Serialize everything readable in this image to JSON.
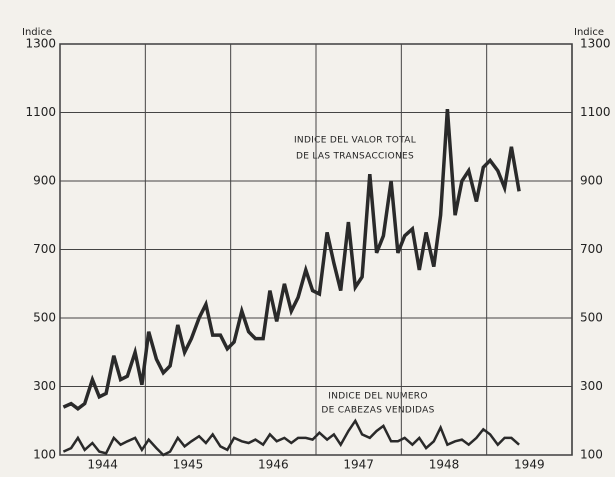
{
  "chart_data": {
    "type": "line",
    "y_label": "Indice",
    "y2_label": "Indice",
    "annotations": [
      "INDICE DEL VALOR TOTAL",
      "DE LAS TRANSACCIONES",
      "INDICE DEL NUMERO",
      "DE CABEZAS VENDIDAS"
    ],
    "x": [
      1944.04,
      1944.13,
      1944.21,
      1944.29,
      1944.38,
      1944.46,
      1944.54,
      1944.63,
      1944.71,
      1944.79,
      1944.88,
      1944.96,
      1945.04,
      1945.13,
      1945.21,
      1945.29,
      1945.38,
      1945.46,
      1945.54,
      1945.63,
      1945.71,
      1945.79,
      1945.88,
      1945.96,
      1946.04,
      1946.13,
      1946.21,
      1946.29,
      1946.38,
      1946.46,
      1946.54,
      1946.63,
      1946.71,
      1946.79,
      1946.88,
      1946.96,
      1947.04,
      1947.13,
      1947.21,
      1947.29,
      1947.38,
      1947.46,
      1947.54,
      1947.63,
      1947.71,
      1947.79,
      1947.88,
      1947.96,
      1948.04,
      1948.13,
      1948.21,
      1948.29,
      1948.38,
      1948.46,
      1948.54,
      1948.63,
      1948.71,
      1948.79,
      1948.88,
      1948.96,
      1949.04,
      1949.13,
      1949.21,
      1949.29,
      1949.38
    ],
    "series": [
      {
        "name": "INDICE DEL VALOR TOTAL DE LAS TRANSACCIONES",
        "color": "#2a2a2a",
        "values": [
          240,
          250,
          235,
          250,
          320,
          270,
          280,
          390,
          320,
          330,
          400,
          305,
          460,
          380,
          340,
          360,
          480,
          400,
          440,
          500,
          540,
          450,
          450,
          410,
          430,
          520,
          460,
          440,
          440,
          580,
          490,
          600,
          520,
          560,
          640,
          580,
          570,
          750,
          660,
          580,
          780,
          590,
          620,
          920,
          690,
          740,
          900,
          690,
          740,
          760,
          640,
          750,
          650,
          800,
          1110,
          800,
          900,
          930,
          840,
          940,
          960,
          930,
          880,
          1000,
          870
        ]
      },
      {
        "name": "INDICE DEL NUMERO DE CABEZAS VENDIDAS",
        "color": "#2a2a2a",
        "values": [
          110,
          120,
          150,
          115,
          135,
          110,
          105,
          150,
          130,
          140,
          150,
          115,
          145,
          120,
          100,
          110,
          150,
          125,
          140,
          155,
          135,
          160,
          125,
          115,
          150,
          140,
          135,
          145,
          130,
          160,
          140,
          150,
          135,
          150,
          150,
          145,
          165,
          145,
          160,
          130,
          170,
          200,
          160,
          150,
          170,
          185,
          140,
          140,
          150,
          130,
          150,
          120,
          140,
          180,
          130,
          140,
          145,
          130,
          150,
          175,
          160,
          130,
          150,
          150,
          130
        ]
      }
    ],
    "xlim": [
      1944,
      1950
    ],
    "xticks": [
      1944,
      1945,
      1946,
      1947,
      1948,
      1949
    ],
    "ylim": [
      100,
      1300
    ],
    "yticks": [
      100,
      300,
      500,
      700,
      900,
      1100,
      1300
    ],
    "grid": true
  }
}
